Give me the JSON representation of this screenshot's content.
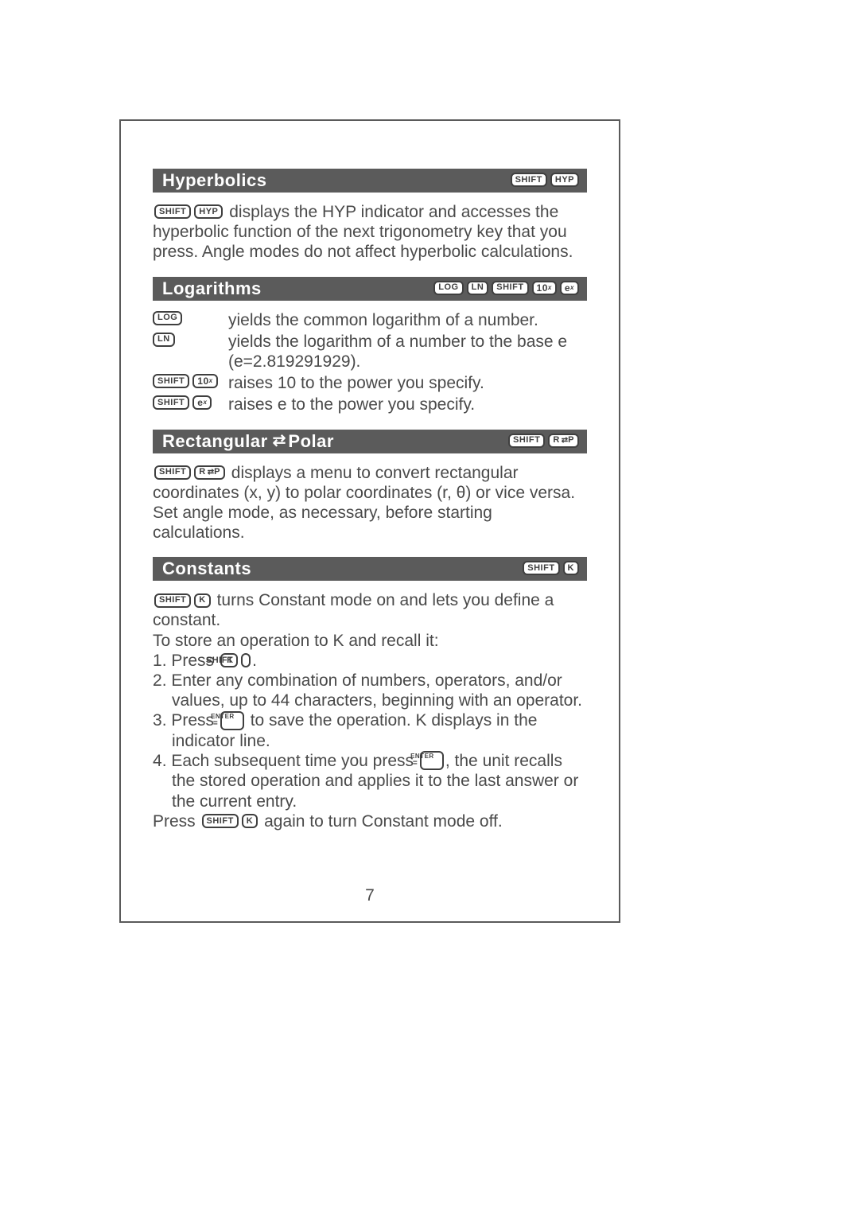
{
  "page_number": "7",
  "sections": {
    "hyperbolics": {
      "title": "Hyperbolics",
      "header_keys": [
        "SHIFT",
        "HYP"
      ],
      "body_pre_keys": [
        "SHIFT",
        "HYP"
      ],
      "body_text": " displays the HYP indicator and accesses the hyperbolic function of the next trigonometry key that you press. Angle modes do not affect hyperbolic calculations."
    },
    "logarithms": {
      "title": "Logarithms",
      "header_keys_plain": [
        "LOG",
        "LN",
        "SHIFT"
      ],
      "header_key_10x": {
        "base": "10",
        "sup": "x"
      },
      "header_key_ex": {
        "base": "e",
        "sup": "x"
      },
      "rows": [
        {
          "keys": [
            {
              "label": "LOG"
            }
          ],
          "desc": "yields the common logarithm of a number."
        },
        {
          "keys": [
            {
              "label": "LN"
            }
          ],
          "desc": "yields the logarithm of a number to the base e (e=2.819291929)."
        },
        {
          "keys": [
            {
              "label": "SHIFT"
            },
            {
              "base": "10",
              "sup": "x"
            }
          ],
          "desc": "raises 10 to the power you specify."
        },
        {
          "keys": [
            {
              "label": "SHIFT"
            },
            {
              "base": "e",
              "sup": "x"
            }
          ],
          "desc": "raises e to the power you specify."
        }
      ]
    },
    "rect_polar": {
      "title_left": "Rectangular",
      "title_right": "Polar",
      "header_keys": [
        "SHIFT"
      ],
      "body_text": " displays a menu to convert rectangular coordinates (x, y) to polar coordinates (r, θ) or vice versa. Set angle mode, as necessary, before starting calculations."
    },
    "constants": {
      "title": "Constants",
      "header_keys": [
        "SHIFT",
        "K"
      ],
      "intro_after_keys": " turns Constant mode on and lets you define a constant.",
      "store_line": "To store an operation to K and recall it:",
      "step1_a": "Press ",
      "step1_b": ".",
      "step2": "Enter any combination of numbers, operators, and/or values, up to 44 characters, beginning with an operator.",
      "step3_a": "Press ",
      "step3_b": " to save the operation. K displays in the indicator line.",
      "step4_a": "Each subsequent time you press ",
      "step4_b": ", the unit recalls the stored operation and applies it to the last answer or the current entry.",
      "outro_a": "Press ",
      "outro_b": " again to turn Constant mode off.",
      "enter_top": "ENTER",
      "enter_bot": "="
    }
  }
}
